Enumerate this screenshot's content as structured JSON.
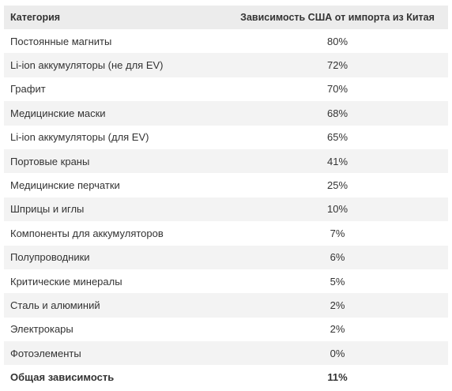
{
  "table": {
    "header": [
      "Категория",
      "Зависимость США от импорта из Китая"
    ],
    "rows": [
      [
        "Постоянные магниты",
        "80%"
      ],
      [
        "Li-ion аккумуляторы (не для EV)",
        "72%"
      ],
      [
        "Графит",
        "70%"
      ],
      [
        "Медицинские маски",
        "68%"
      ],
      [
        "Li-ion аккумуляторы (для EV)",
        "65%"
      ],
      [
        "Портовые краны",
        "41%"
      ],
      [
        "Медицинские перчатки",
        "25%"
      ],
      [
        "Шприцы и иглы",
        "10%"
      ],
      [
        "Компоненты для аккумуляторов",
        "7%"
      ],
      [
        "Полупроводники",
        "6%"
      ],
      [
        "Критические минералы",
        "5%"
      ],
      [
        "Сталь и алюминий",
        "2%"
      ],
      [
        "Электрокары",
        "2%"
      ],
      [
        "Фотоэлементы",
        "0%"
      ]
    ],
    "total": [
      "Общая зависимость",
      "11%"
    ]
  }
}
